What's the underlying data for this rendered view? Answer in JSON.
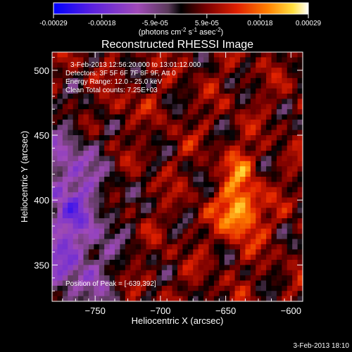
{
  "chart_data": {
    "type": "heatmap",
    "title": "Reconstructed RHESSI Image",
    "xlabel": "Heliocentric X (arcsec)",
    "ylabel": "Heliocentric Y (arcsec)",
    "xlim": [
      -783,
      -591
    ],
    "ylim": [
      322,
      514
    ],
    "x_ticks": [
      -750,
      -700,
      -650,
      -600
    ],
    "y_ticks": [
      350,
      400,
      450,
      500
    ],
    "colorbar": {
      "range": [
        -0.00029,
        0.00029
      ],
      "tick_values": [
        -0.00029,
        -0.00018,
        -5.9e-05,
        5.9e-05,
        0.00018,
        0.00029
      ],
      "tick_labels": [
        "-0.00029",
        "-0.00018",
        "-5.9e-05",
        "5.9e-05",
        "0.00018",
        "0.00029"
      ],
      "units_text": "(photons cm",
      "units_exp1": "-2",
      "units_mid": " s",
      "units_exp2": "-1",
      "units_mid2": " asec",
      "units_exp3": "-2",
      "units_end": ")"
    },
    "info_lines": [
      "3-Feb-2013 12:56:20.000 to 13:01:12.000",
      "Detectors: 3F 5F 6F 7F 8F 9F, Att 0",
      "Energy Range: 12.0 - 25.0 keV",
      "Clean     Total counts: 7.25E+03"
    ],
    "peak_label": "Position of Peak = [-639,392]",
    "peak_position": [
      -639,
      392
    ],
    "footer_date": "3-Feb-2013 18:10",
    "grid": false
  }
}
